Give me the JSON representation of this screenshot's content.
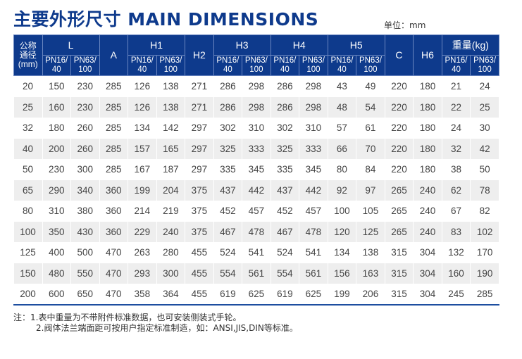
{
  "title": "主要外形尺寸 MAIN DIMENSIONS",
  "unit": "单位：mm",
  "header": {
    "nominal": "公称通径(mm)",
    "groups": [
      "L",
      "A",
      "H1",
      "H2",
      "H3",
      "H4",
      "H5",
      "C",
      "H6",
      "重量(kg)"
    ],
    "sub_pn16": "PN16/40",
    "sub_pn63": "PN63/100"
  },
  "rows": [
    [
      "20",
      "150",
      "230",
      "285",
      "126",
      "138",
      "271",
      "286",
      "298",
      "286",
      "298",
      "43",
      "49",
      "220",
      "180",
      "21",
      "24"
    ],
    [
      "25",
      "160",
      "230",
      "285",
      "126",
      "138",
      "271",
      "286",
      "298",
      "286",
      "298",
      "48",
      "54",
      "220",
      "180",
      "22",
      "25"
    ],
    [
      "32",
      "180",
      "260",
      "285",
      "134",
      "142",
      "297",
      "302",
      "310",
      "302",
      "310",
      "57",
      "61",
      "220",
      "180",
      "24",
      "30"
    ],
    [
      "40",
      "200",
      "260",
      "285",
      "157",
      "165",
      "297",
      "325",
      "333",
      "325",
      "333",
      "66",
      "70",
      "220",
      "180",
      "32",
      "42"
    ],
    [
      "50",
      "230",
      "300",
      "285",
      "167",
      "187",
      "297",
      "335",
      "345",
      "335",
      "345",
      "80",
      "84",
      "220",
      "180",
      "38",
      "50"
    ],
    [
      "65",
      "290",
      "340",
      "360",
      "199",
      "204",
      "375",
      "437",
      "442",
      "437",
      "442",
      "92",
      "97",
      "265",
      "240",
      "62",
      "78"
    ],
    [
      "80",
      "310",
      "380",
      "360",
      "214",
      "219",
      "375",
      "452",
      "457",
      "452",
      "457",
      "100",
      "105",
      "265",
      "240",
      "67",
      "82"
    ],
    [
      "100",
      "350",
      "430",
      "360",
      "229",
      "240",
      "375",
      "467",
      "478",
      "467",
      "478",
      "120",
      "125",
      "265",
      "240",
      "83",
      "102"
    ],
    [
      "125",
      "400",
      "500",
      "470",
      "263",
      "280",
      "455",
      "524",
      "541",
      "524",
      "541",
      "134",
      "138",
      "315",
      "304",
      "132",
      "170"
    ],
    [
      "150",
      "480",
      "550",
      "470",
      "293",
      "300",
      "455",
      "554",
      "561",
      "554",
      "561",
      "156",
      "163",
      "315",
      "304",
      "160",
      "190"
    ],
    [
      "200",
      "600",
      "650",
      "470",
      "358",
      "364",
      "455",
      "619",
      "625",
      "619",
      "625",
      "199",
      "206",
      "315",
      "304",
      "245",
      "285"
    ]
  ],
  "notes": [
    "注：1.表中重量为不带附件标准数据，也可安装侧装式手轮。",
    "2.阀体法兰端面距可按用户指定标准制造，如：ANSI,JIS,DIN等标准。"
  ],
  "colors": {
    "header_bg": "#0e3a8c",
    "alt_row": "#eeeeee"
  }
}
